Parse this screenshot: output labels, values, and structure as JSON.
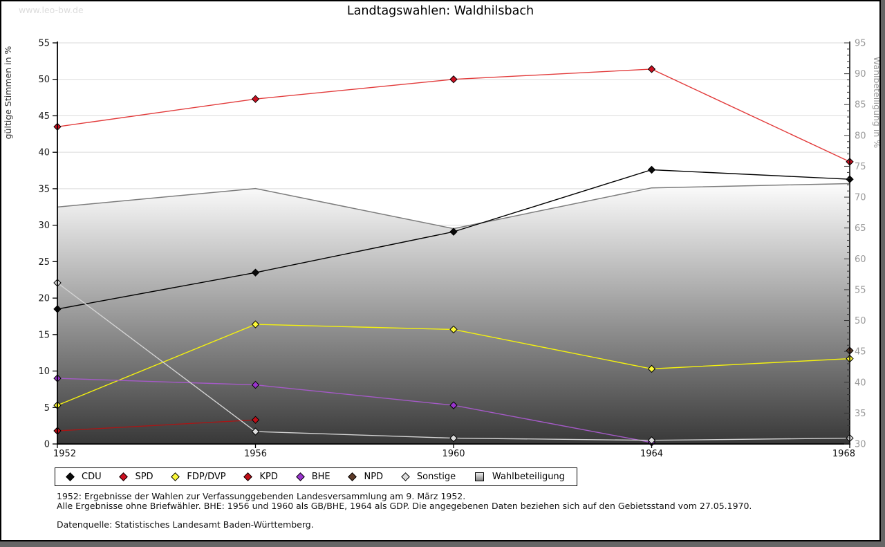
{
  "page": {
    "watermark": "www.leo-bw.de"
  },
  "chart_data": {
    "type": "line",
    "title": "Landtagswahlen: Waldhilsbach",
    "categories": [
      "1952",
      "1956",
      "1960",
      "1964",
      "1968"
    ],
    "left_axis": {
      "label": "gültige Stimmen in %",
      "min": 0,
      "max": 55,
      "tick_step": 5
    },
    "right_axis": {
      "label": "Wahlbeteiligung in %",
      "min": 30,
      "max": 95,
      "tick_step": 5,
      "minor_step": 1
    },
    "grid": "horizontal",
    "legend_position": "bottom",
    "series": [
      {
        "name": "CDU",
        "axis": "left",
        "color": "#000000",
        "marker_fill": "#0a0a0a",
        "values": [
          18.5,
          23.5,
          29.1,
          37.6,
          36.3
        ]
      },
      {
        "name": "SPD",
        "axis": "left",
        "color": "#e23b3b",
        "marker_fill": "#cc1021",
        "values": [
          43.5,
          47.3,
          50.0,
          51.4,
          38.7
        ]
      },
      {
        "name": "FDP/DVP",
        "axis": "left",
        "color": "#f5f20e",
        "marker_fill": "#fbf838",
        "values": [
          5.3,
          16.4,
          15.7,
          10.3,
          11.7
        ]
      },
      {
        "name": "KPD",
        "axis": "left",
        "color": "#a81616",
        "marker_fill": "#c00d16",
        "values": [
          1.8,
          3.3,
          null,
          null,
          null
        ]
      },
      {
        "name": "BHE",
        "axis": "left",
        "color": "#a55ac8",
        "marker_fill": "#9934cd",
        "values": [
          9.0,
          8.1,
          5.3,
          0.2,
          null
        ]
      },
      {
        "name": "NPD",
        "axis": "left",
        "color": "#5d3a28",
        "marker_fill": "#5d3a28",
        "values": [
          null,
          null,
          null,
          null,
          12.8
        ]
      },
      {
        "name": "Sonstige",
        "axis": "left",
        "color": "#d3d3d3",
        "marker_fill": "#dcdcdc",
        "values": [
          22.1,
          1.7,
          0.8,
          0.5,
          0.8
        ]
      }
    ],
    "area_series": {
      "name": "Wahlbeteiligung",
      "axis": "right",
      "values": [
        68.4,
        71.4,
        64.9,
        71.5,
        72.2
      ],
      "edge_color": "#7c7c7c",
      "fill_top": "#fdfdfd",
      "fill_bottom": "#383838"
    },
    "footnotes": [
      "1952: Ergebnisse der Wahlen zur Verfassunggebenden Landesversammlung am 9. März 1952.",
      "Alle Ergebnisse ohne Briefwähler. BHE: 1956 und 1960 als GB/BHE, 1964 als GDP. Die angegebenen Daten beziehen sich auf den Gebietsstand vom 27.05.1970."
    ],
    "source": "Datenquelle: Statistisches Landesamt Baden-Württemberg."
  }
}
